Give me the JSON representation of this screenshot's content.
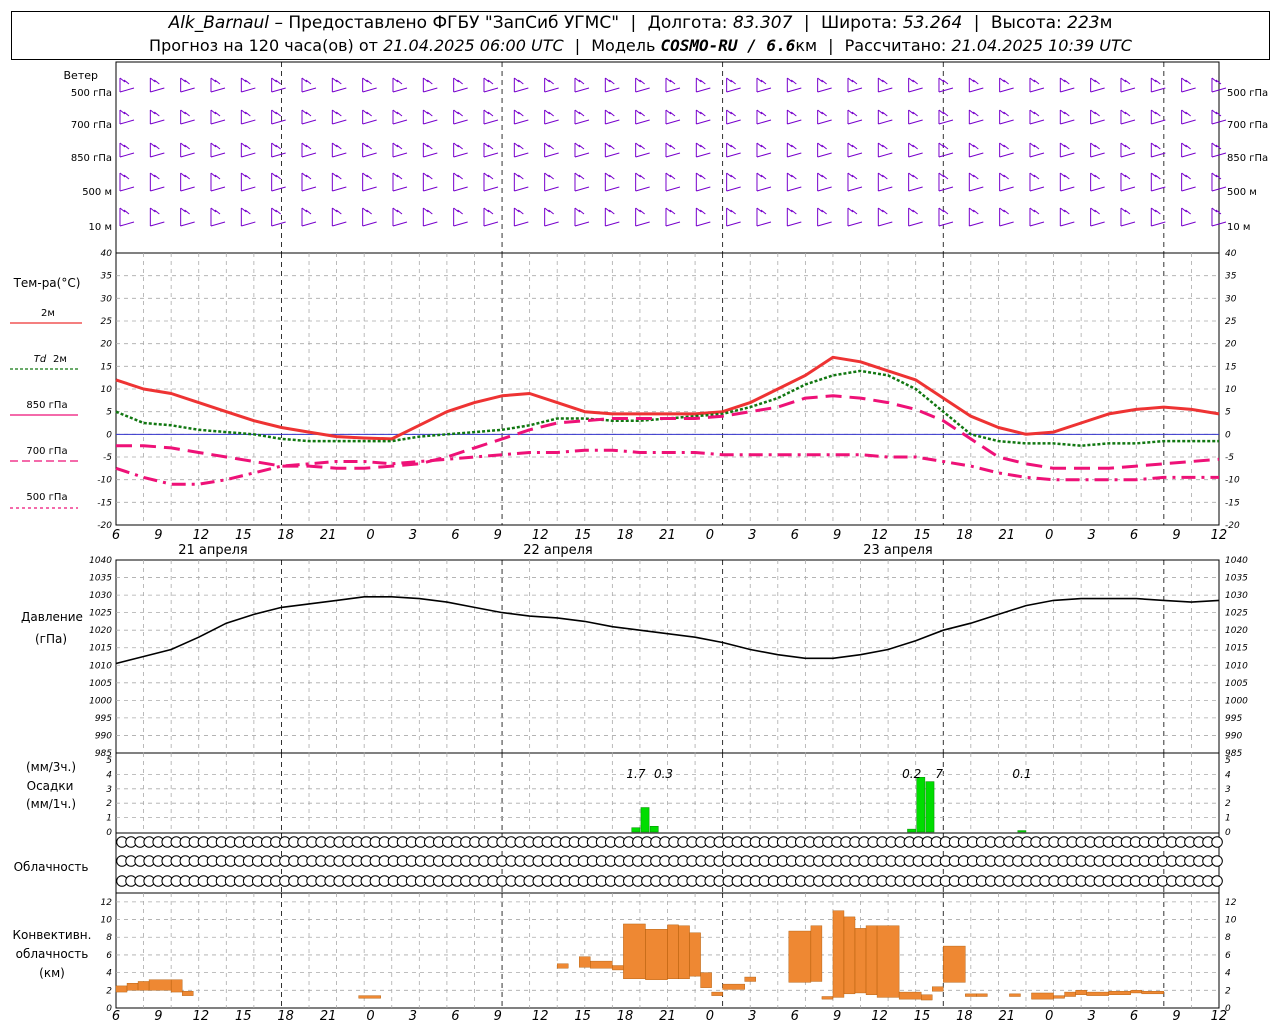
{
  "header": {
    "station": "Alk_Barnaul",
    "dash": "–",
    "provider": "Предоставлено ФГБУ \"ЗапСиб УГМС\"",
    "lon_label": "Долгота:",
    "lon": "83.307",
    "lat_label": "Широта:",
    "lat": "53.264",
    "alt_label": "Высота:",
    "alt": "223",
    "alt_unit": "м"
  },
  "subheader": {
    "forecast_text": "Прогноз на 120 часа(ов) от",
    "forecast_time": "21.04.2025 06:00 UTC",
    "model_label": "Модель",
    "model_name": "COSMO-RU / 6.6",
    "model_unit": "км",
    "calc_label": "Рассчитано:",
    "calc_time": "21.04.2025 10:39 UTC"
  },
  "colors": {
    "t2m": "#ee3333",
    "td2m": "#117711",
    "t850": "#ee1177",
    "t700": "#ee1177",
    "t500": "#ee1177",
    "wind": "#7700cc",
    "pressure": "#000000",
    "precip": "#00dd00",
    "convective": "#ee8833"
  },
  "time_axis": {
    "hours": [
      "6",
      "9",
      "12",
      "15",
      "18",
      "21",
      "0",
      "3",
      "6",
      "9",
      "12",
      "15",
      "18",
      "21",
      "0",
      "3",
      "6",
      "9",
      "12",
      "15",
      "18",
      "21",
      "0",
      "3",
      "6",
      "9",
      "12"
    ],
    "days": [
      "21 апреля",
      "22 апреля",
      "23 апреля"
    ]
  },
  "wind_panel": {
    "title": "Ветер",
    "levels": [
      "500 гПа",
      "700 гПа",
      "850 гПа",
      "500 м",
      "10  м"
    ],
    "icon": "wind-barb-icon"
  },
  "panel_labels": {
    "temp": "Тем-ра(°С)",
    "t2m": "2м",
    "td_sym": "Td",
    "td_lvl": "2м",
    "t850": "850 гПа",
    "t700": "700 гПа",
    "t500": "500 гПа",
    "pressure": "Давление",
    "pressure_unit": "(гПа)",
    "precip_3h": "(мм/3ч.)",
    "precip": "Осадки",
    "precip_1h": "(мм/1ч.)",
    "cloud": "Облачность",
    "conv1": "Конвективн.",
    "conv2": "облачность",
    "conv3": "(км)"
  },
  "chart_data": [
    {
      "type": "line",
      "name": "temperature",
      "x": [
        0,
        3,
        6,
        9,
        12,
        15,
        18,
        21,
        24,
        27,
        30,
        33,
        36,
        39,
        42,
        45,
        48,
        51,
        54,
        57,
        60,
        63,
        66,
        69,
        72,
        75,
        78,
        81,
        84,
        87,
        90,
        93,
        96,
        99,
        102,
        105,
        108,
        111,
        114,
        117,
        120
      ],
      "ylim": [
        -20,
        40
      ],
      "yticks": [
        -20,
        -15,
        -10,
        -5,
        0,
        5,
        10,
        15,
        20,
        25,
        30,
        35,
        40
      ],
      "series": [
        {
          "name": "2м",
          "style": "solid",
          "values": [
            12,
            10,
            9,
            7,
            5,
            3,
            1.5,
            0.5,
            -0.5,
            -0.8,
            -1,
            2,
            5,
            7,
            8.5,
            9,
            7,
            5,
            4.5,
            4.5,
            4.5,
            4.5,
            5,
            7,
            10,
            13,
            17,
            16,
            14,
            12,
            8,
            4,
            1.5,
            0,
            0.5,
            2.5,
            4.5,
            5.5,
            6,
            5.5,
            4.5
          ]
        },
        {
          "name": "2м",
          "style": "dot",
          "values": [
            5,
            2.5,
            2,
            1,
            0.5,
            0,
            -1,
            -1.5,
            -1.5,
            -1.5,
            -1.5,
            -0.5,
            0,
            0.5,
            1,
            2,
            3.5,
            3.5,
            3,
            3,
            3.5,
            4,
            4.5,
            6,
            8,
            11,
            13,
            14,
            13,
            10,
            5,
            0,
            -1.5,
            -2,
            -2,
            -2.5,
            -2,
            -2,
            -1.5,
            -1.5,
            -1.5
          ]
        },
        {
          "name": "850 гПа",
          "style": "longdash",
          "values": [
            -2.5,
            -2.5,
            -3,
            -4,
            -5,
            -6,
            -7,
            -7,
            -7.5,
            -7.5,
            -7,
            -6.5,
            -5,
            -3,
            -1,
            1,
            2.5,
            3,
            3.5,
            3.5,
            3.5,
            3.5,
            4,
            5,
            6,
            8,
            8.5,
            8,
            7,
            5.5,
            3,
            -1,
            -5,
            -6.5,
            -7.5,
            -7.5,
            -7.5,
            -7,
            -6.5,
            -6,
            -5.5
          ]
        },
        {
          "name": "700 гПа",
          "style": "dashdot",
          "values": [
            -7.5,
            -9.5,
            -11,
            -11,
            -10,
            -8.5,
            -7,
            -6.5,
            -6,
            -6,
            -6.5,
            -6,
            -5.5,
            -5,
            -4.5,
            -4,
            -4,
            -3.5,
            -3.5,
            -4,
            -4,
            -4,
            -4.5,
            -4.5,
            -4.5,
            -4.5,
            -4.5,
            -4.5,
            -5,
            -5,
            -6,
            -7,
            -8.5,
            -9.5,
            -10,
            -10,
            -10,
            -10,
            -9.5,
            -9.5,
            -9.5
          ]
        }
      ]
    },
    {
      "type": "line",
      "name": "pressure",
      "x": [
        0,
        3,
        6,
        9,
        12,
        15,
        18,
        21,
        24,
        27,
        30,
        33,
        36,
        39,
        42,
        45,
        48,
        51,
        54,
        57,
        60,
        63,
        66,
        69,
        72,
        75,
        78,
        81,
        84,
        87,
        90,
        93,
        96,
        99,
        102,
        105,
        108,
        111,
        114,
        117,
        120
      ],
      "ylim": [
        985,
        1040
      ],
      "yticks": [
        985,
        990,
        995,
        1000,
        1005,
        1010,
        1015,
        1020,
        1025,
        1030,
        1035,
        1040
      ],
      "series": [
        {
          "name": "",
          "values": [
            1010.5,
            1012.5,
            1014.5,
            1018,
            1022,
            1024.5,
            1026.5,
            1027.5,
            1028.5,
            1029.5,
            1029.5,
            1029,
            1028,
            1026.5,
            1025,
            1024,
            1023.5,
            1022.5,
            1021,
            1020,
            1019,
            1018,
            1016.5,
            1014.5,
            1013,
            1012,
            1012,
            1013,
            1014.5,
            1017,
            1020,
            1022,
            1024.5,
            1027,
            1028.5,
            1029,
            1029,
            1029,
            1028.5,
            1028,
            1028.5
          ]
        }
      ]
    },
    {
      "type": "bar",
      "name": "precipitation",
      "ylim": [
        0,
        5
      ],
      "yticks": [
        0,
        1,
        2,
        3,
        4,
        5
      ],
      "annotations": [
        {
          "x": 57,
          "text": "1.7"
        },
        {
          "x": 60,
          "text": "0.3"
        },
        {
          "x": 87,
          "text": "0.2"
        },
        {
          "x": 90,
          "text": "7"
        },
        {
          "x": 99,
          "text": "0.1"
        }
      ],
      "bars": [
        {
          "x": 57,
          "value": 0.3
        },
        {
          "x": 58,
          "value": 1.7
        },
        {
          "x": 59,
          "value": 0.4
        },
        {
          "x": 87,
          "value": 0.2
        },
        {
          "x": 88,
          "value": 3.8
        },
        {
          "x": 89,
          "value": 3.5
        },
        {
          "x": 99,
          "value": 0.1
        }
      ]
    },
    {
      "type": "table",
      "name": "cloud_cover",
      "note": "octas per 3h step (0 = clear, 8 = overcast), three rows",
      "rows": [
        [
          0,
          0,
          0,
          0,
          0,
          0,
          0,
          0,
          0,
          0,
          0,
          0,
          0,
          0,
          0,
          0,
          0,
          0,
          0,
          0,
          0,
          0,
          0,
          0,
          0,
          0,
          0,
          0,
          0,
          0,
          0,
          0,
          0,
          0,
          0,
          0,
          0,
          0,
          0,
          0,
          0,
          0,
          0,
          0,
          0,
          0,
          0,
          0,
          0,
          0,
          0,
          0,
          0,
          0,
          0,
          0,
          0,
          0,
          0,
          0,
          0,
          0,
          0,
          0,
          0,
          0,
          0,
          0,
          0,
          0,
          0,
          0,
          0,
          0,
          0,
          0,
          0,
          0,
          0,
          0,
          0,
          0,
          0,
          0,
          0,
          0,
          0,
          0,
          0,
          0,
          0,
          0,
          0,
          0,
          0,
          0,
          0,
          0,
          0,
          0,
          0,
          0,
          0,
          0,
          0,
          0,
          0,
          0,
          0,
          0,
          0,
          0,
          0,
          0,
          0,
          0,
          0,
          0,
          0,
          0,
          0,
          0,
          0
        ],
        [
          0,
          0,
          0,
          0,
          0,
          0,
          0,
          0,
          0,
          0,
          0,
          0,
          0,
          0,
          0,
          0,
          0,
          0,
          0,
          0,
          0,
          0,
          0,
          0,
          0,
          0,
          0,
          0,
          0,
          0,
          0,
          0,
          0,
          0,
          0,
          0,
          0,
          0,
          0,
          0,
          0,
          0,
          0,
          0,
          0,
          0,
          0,
          0,
          0,
          0,
          0,
          0,
          0,
          0,
          0,
          0,
          0,
          0,
          0,
          0,
          0,
          0,
          0,
          0,
          0,
          0,
          0,
          0,
          0,
          0,
          0,
          0,
          0,
          0,
          0,
          0,
          0,
          0,
          0,
          0,
          0,
          0,
          0,
          0,
          0,
          0,
          0,
          0,
          0,
          0,
          0,
          0,
          0,
          0,
          0,
          0,
          0,
          0,
          0,
          0,
          0,
          0,
          0,
          0,
          0,
          0,
          0,
          0,
          0,
          0,
          0,
          0,
          0,
          0,
          0,
          0,
          0,
          0,
          0,
          0,
          0,
          0,
          0
        ],
        [
          0,
          0,
          0,
          0,
          0,
          0,
          0,
          0,
          0,
          0,
          0,
          0,
          0,
          0,
          0,
          0,
          0,
          0,
          0,
          0,
          0,
          0,
          0,
          0,
          0,
          0,
          0,
          0,
          0,
          0,
          0,
          0,
          0,
          0,
          0,
          0,
          0,
          0,
          0,
          0,
          0,
          0,
          0,
          0,
          0,
          0,
          0,
          0,
          0,
          0,
          0,
          0,
          0,
          0,
          0,
          0,
          0,
          0,
          0,
          0,
          0,
          0,
          0,
          0,
          0,
          0,
          0,
          0,
          0,
          0,
          0,
          0,
          0,
          0,
          0,
          0,
          0,
          0,
          0,
          0,
          0,
          0,
          0,
          0,
          0,
          0,
          0,
          0,
          0,
          0,
          0,
          0,
          0,
          0,
          0,
          0,
          0,
          0,
          0,
          0,
          0,
          0,
          0,
          0,
          0,
          0,
          0,
          0,
          0,
          0,
          0,
          0,
          0,
          0,
          0,
          0,
          0,
          0,
          0,
          0,
          0,
          0,
          0
        ]
      ]
    },
    {
      "type": "bar",
      "name": "convective_cloud",
      "ylim": [
        0,
        13
      ],
      "yticks": [
        0,
        2,
        4,
        6,
        8,
        10,
        12
      ],
      "bars": [
        {
          "x0": 0,
          "x1": 1,
          "base": 1.8,
          "top": 2.5
        },
        {
          "x0": 1,
          "x1": 2,
          "base": 2,
          "top": 2.8
        },
        {
          "x0": 2,
          "x1": 3,
          "base": 2,
          "top": 3
        },
        {
          "x0": 3,
          "x1": 5,
          "base": 2,
          "top": 3.2
        },
        {
          "x0": 5,
          "x1": 6,
          "base": 1.8,
          "top": 3.2
        },
        {
          "x0": 6,
          "x1": 7,
          "base": 1.4,
          "top": 1.9
        },
        {
          "x0": 22,
          "x1": 24,
          "base": 1.1,
          "top": 1.4
        },
        {
          "x0": 40,
          "x1": 41,
          "base": 4.5,
          "top": 5
        },
        {
          "x0": 42,
          "x1": 43,
          "base": 4.6,
          "top": 5.8
        },
        {
          "x0": 43,
          "x1": 45,
          "base": 4.5,
          "top": 5.3
        },
        {
          "x0": 45,
          "x1": 46,
          "base": 4.3,
          "top": 4.8
        },
        {
          "x0": 46,
          "x1": 48,
          "base": 3.3,
          "top": 9.5
        },
        {
          "x0": 48,
          "x1": 50,
          "base": 3.2,
          "top": 8.9
        },
        {
          "x0": 50,
          "x1": 51,
          "base": 3.3,
          "top": 9.4
        },
        {
          "x0": 51,
          "x1": 52,
          "base": 3.3,
          "top": 9.3
        },
        {
          "x0": 52,
          "x1": 53,
          "base": 3.6,
          "top": 8.5
        },
        {
          "x0": 53,
          "x1": 54,
          "base": 2.3,
          "top": 4
        },
        {
          "x0": 54,
          "x1": 55,
          "base": 1.4,
          "top": 1.8
        },
        {
          "x0": 55,
          "x1": 57,
          "base": 2.1,
          "top": 2.7
        },
        {
          "x0": 57,
          "x1": 58,
          "base": 3,
          "top": 3.5
        },
        {
          "x0": 61,
          "x1": 63,
          "base": 2.9,
          "top": 8.7
        },
        {
          "x0": 63,
          "x1": 64,
          "base": 3,
          "top": 9.3
        },
        {
          "x0": 64,
          "x1": 65,
          "base": 1,
          "top": 1.3
        },
        {
          "x0": 65,
          "x1": 66,
          "base": 1.2,
          "top": 11
        },
        {
          "x0": 66,
          "x1": 67,
          "base": 1.6,
          "top": 10.3
        },
        {
          "x0": 67,
          "x1": 68,
          "base": 1.7,
          "top": 9
        },
        {
          "x0": 68,
          "x1": 69,
          "base": 1.5,
          "top": 9.3
        },
        {
          "x0": 69,
          "x1": 71,
          "base": 1.2,
          "top": 9.3
        },
        {
          "x0": 71,
          "x1": 73,
          "base": 1,
          "top": 1.8
        },
        {
          "x0": 73,
          "x1": 74,
          "base": 0.9,
          "top": 1.5
        },
        {
          "x0": 74,
          "x1": 75,
          "base": 1.9,
          "top": 2.4
        },
        {
          "x0": 75,
          "x1": 77,
          "base": 2.9,
          "top": 7
        },
        {
          "x0": 77,
          "x1": 78,
          "base": 1.3,
          "top": 1.6
        },
        {
          "x0": 78,
          "x1": 79,
          "base": 1.3,
          "top": 1.6
        },
        {
          "x0": 81,
          "x1": 82,
          "base": 1.3,
          "top": 1.6
        },
        {
          "x0": 83,
          "x1": 85,
          "base": 1,
          "top": 1.7
        },
        {
          "x0": 85,
          "x1": 86,
          "base": 1.1,
          "top": 1.4
        },
        {
          "x0": 86,
          "x1": 87,
          "base": 1.3,
          "top": 1.8
        },
        {
          "x0": 87,
          "x1": 88,
          "base": 1.5,
          "top": 2
        },
        {
          "x0": 88,
          "x1": 90,
          "base": 1.4,
          "top": 1.8
        },
        {
          "x0": 90,
          "x1": 92,
          "base": 1.5,
          "top": 1.9
        },
        {
          "x0": 92,
          "x1": 93,
          "base": 1.7,
          "top": 2
        },
        {
          "x0": 93,
          "x1": 95,
          "base": 1.6,
          "top": 1.9
        }
      ]
    }
  ]
}
